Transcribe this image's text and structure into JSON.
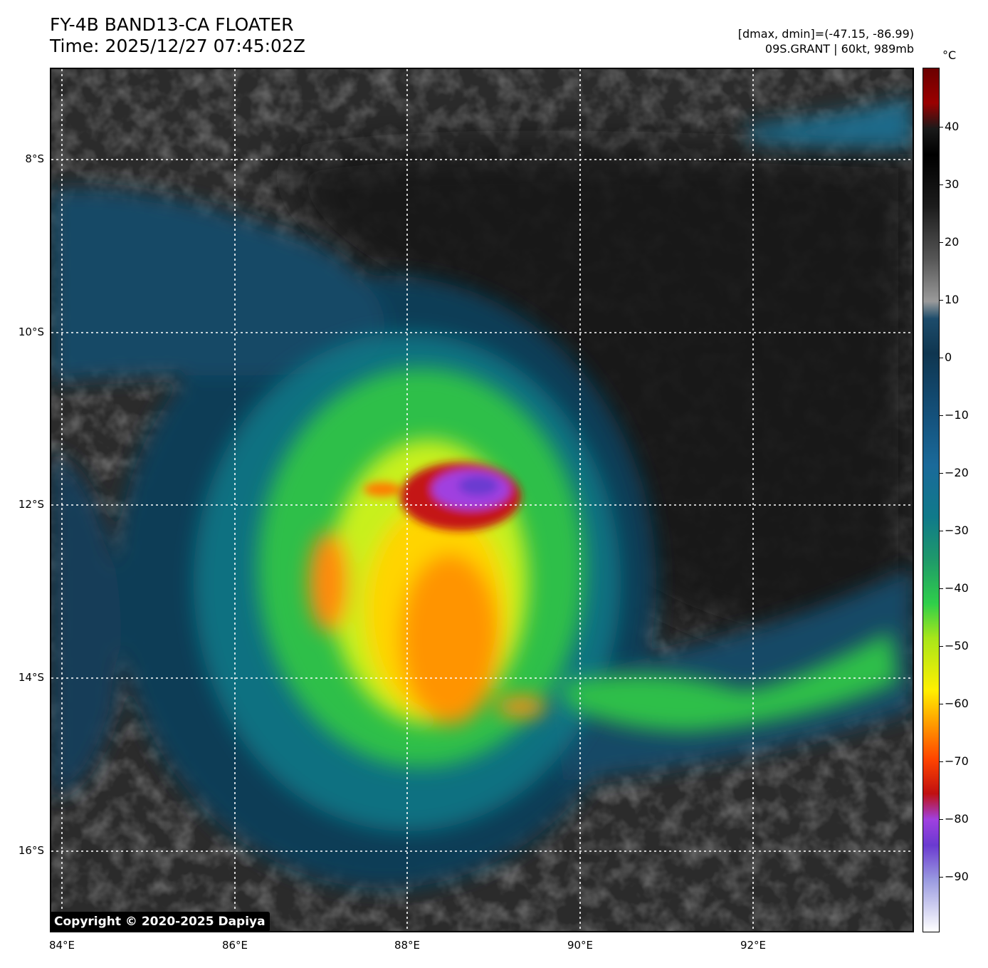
{
  "header": {
    "title_line1": "FY-4B BAND13-CA FLOATER",
    "title_line2": "Time: 2025/12/27 07:45:02Z",
    "info_line1": "[dmax, dmin]=(-47.15, -86.99)",
    "info_line2": "09S.GRANT | 60kt, 989mb"
  },
  "map": {
    "lat_labels": [
      "8°S",
      "10°S",
      "12°S",
      "14°S",
      "16°S"
    ],
    "lon_labels": [
      "84°E",
      "86°E",
      "88°E",
      "90°E",
      "92°E"
    ],
    "storm_center": {
      "lon": 88.7,
      "lat": -11.8
    }
  },
  "colorbar": {
    "unit": "°C",
    "ticks": [
      "40",
      "30",
      "20",
      "10",
      "0",
      "−10",
      "−20",
      "−30",
      "−40",
      "−50",
      "−60",
      "−70",
      "−80",
      "−90"
    ]
  },
  "footer": {
    "copyright": "Copyright © 2020-2025 Dapiya"
  }
}
